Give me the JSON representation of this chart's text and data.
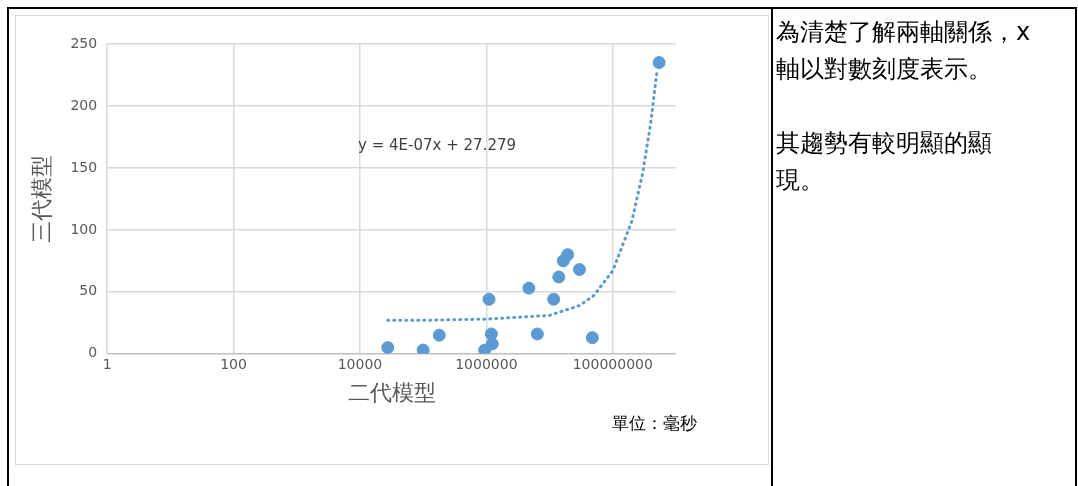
{
  "chart_data": {
    "type": "scatter",
    "xlabel": "二代模型",
    "ylabel": "三代模型",
    "log": "x",
    "xlim": [
      1,
      1000000000
    ],
    "xticks": [
      1,
      100,
      10000,
      1000000,
      100000000
    ],
    "ylim": [
      0,
      250
    ],
    "yticks": [
      0,
      50,
      100,
      150,
      200,
      250
    ],
    "grid": true,
    "legend": false,
    "series": [
      {
        "marker": "circle",
        "color": "#5b9bd5",
        "x": [
          27500,
          100000,
          180000,
          940000,
          1240000,
          1200000,
          1100000,
          4700000,
          6400000,
          11600000,
          14000000,
          16500000,
          19300000,
          29700000,
          47500000,
          540000000
        ],
        "values": [
          5,
          3,
          15,
          3,
          8,
          16,
          44,
          53,
          16,
          44,
          62,
          75,
          80,
          68,
          13,
          235
        ]
      },
      {
        "type": "line",
        "marker": "none",
        "line_style": "dotted",
        "color": "#5b9bd5",
        "x": [
          27500,
          100000,
          1000000,
          10000000,
          30000000,
          50000000,
          100000000,
          200000000,
          300000000,
          400000000,
          500000000
        ],
        "values": [
          27,
          27,
          28,
          31,
          39,
          47,
          67,
          107,
          147,
          187,
          228
        ]
      }
    ],
    "annotations": [
      "y = 4E-07x + 27.279",
      "單位：毫秒",
      "為清楚了解兩軸關係，x 軸以對數刻度表示。",
      "其趨勢有較明顯的顯現。"
    ]
  }
}
